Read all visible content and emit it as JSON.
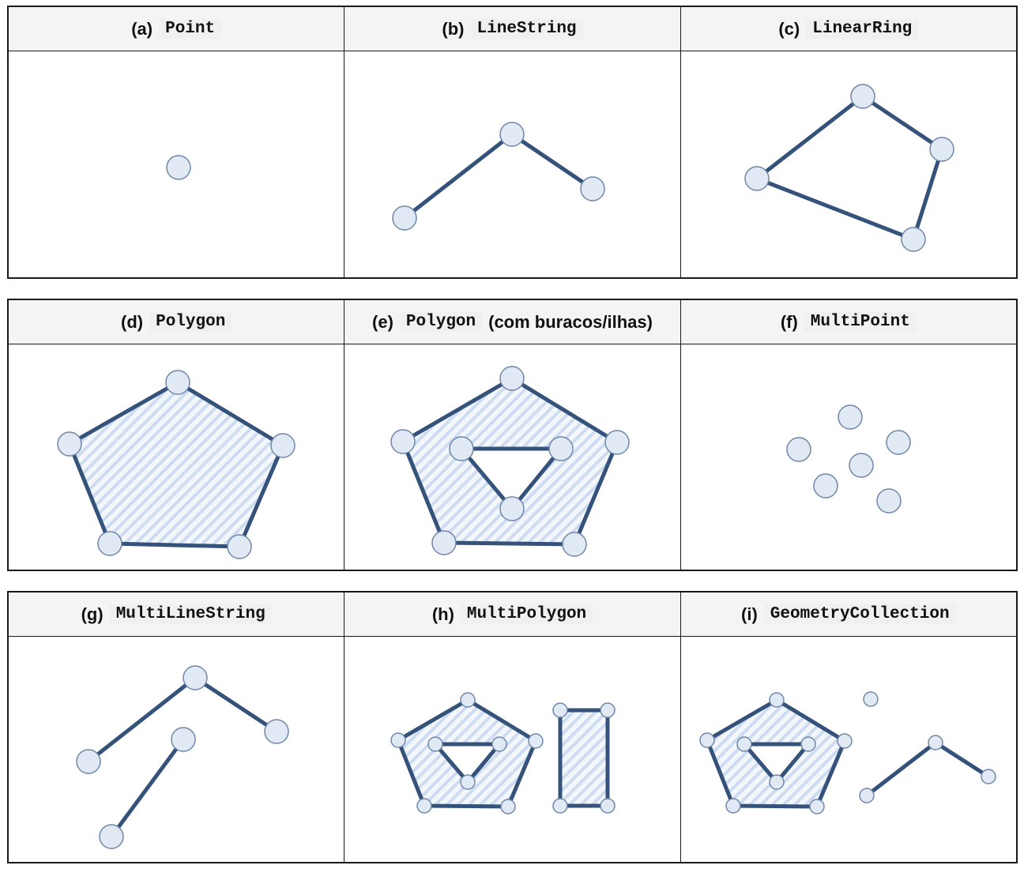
{
  "colors": {
    "stroke": "#34527a",
    "node_fill": "#e1e9f4",
    "node_stroke": "#6e87a8",
    "hatch": "#cddcf1",
    "header_bg": "#f4f4f4"
  },
  "rows": [
    {
      "cells": [
        {
          "letter": "(a)",
          "type": "Point",
          "extra": ""
        },
        {
          "letter": "(b)",
          "type": "LineString",
          "extra": ""
        },
        {
          "letter": "(c)",
          "type": "LinearRing",
          "extra": ""
        }
      ]
    },
    {
      "cells": [
        {
          "letter": "(d)",
          "type": "Polygon",
          "extra": ""
        },
        {
          "letter": "(e)",
          "type": "Polygon",
          "extra": "(com buracos/ilhas)"
        },
        {
          "letter": "(f)",
          "type": "MultiPoint",
          "extra": ""
        }
      ]
    },
    {
      "cells": [
        {
          "letter": "(g)",
          "type": "MultiLineString",
          "extra": ""
        },
        {
          "letter": "(h)",
          "type": "MultiPolygon",
          "extra": ""
        },
        {
          "letter": "(i)",
          "type": "GeometryCollection",
          "extra": ""
        }
      ]
    }
  ]
}
